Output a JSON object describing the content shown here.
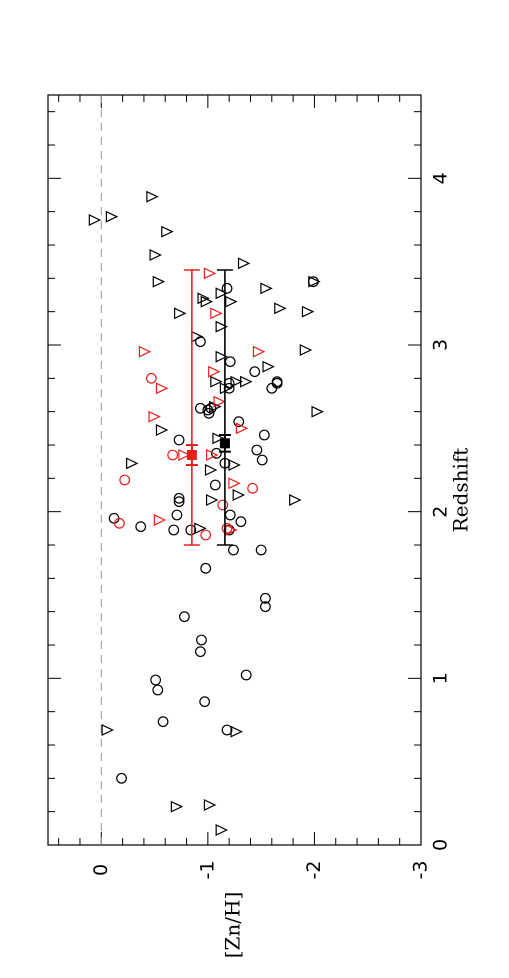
{
  "chart_data": {
    "type": "scatter",
    "x_label": "Redshift",
    "y_label": "[Zn/H]",
    "xlim": [
      0,
      4.5
    ],
    "ylim": [
      0.5,
      -3
    ],
    "xticks": [
      0,
      1,
      2,
      3,
      4
    ],
    "yticks": [
      0,
      -1,
      -2,
      -3
    ],
    "xminorticks": [
      0.2,
      0.4,
      0.6,
      0.8,
      1.2,
      1.4,
      1.6,
      1.8,
      2.2,
      2.4,
      2.6,
      2.8,
      3.2,
      3.4,
      3.6,
      3.8,
      4.2,
      4.4
    ],
    "yminorticks": [
      0.2,
      0.4,
      -0.2,
      -0.4,
      -0.6,
      -0.8,
      -1.2,
      -1.4,
      -1.6,
      -1.8,
      -2.2,
      -2.4,
      -2.6,
      -2.8
    ],
    "hline": 0,
    "hline_color": "#999999",
    "series": [
      {
        "color": "#000000",
        "marker": "circle",
        "x": [
          0.4,
          0.99,
          0.93,
          0.74,
          0.86,
          0.69,
          1.23,
          1.16,
          1.02,
          1.37,
          1.48,
          1.43,
          1.66,
          1.77,
          1.77,
          1.96,
          1.91,
          1.89,
          1.98,
          2.08,
          2.06,
          1.89,
          1.89,
          1.94,
          1.98,
          2.16,
          2.29,
          2.35,
          2.43,
          2.31,
          2.37,
          2.46,
          2.54,
          2.59,
          2.61,
          2.62,
          2.62,
          2.77,
          2.74,
          2.78,
          2.77,
          2.84,
          2.9,
          3.02,
          3.34,
          3.38,
          2.74
        ],
        "values": [
          -0.19,
          -0.51,
          -0.53,
          -0.58,
          -0.97,
          -1.18,
          -0.94,
          -0.93,
          -1.36,
          -0.78,
          -1.54,
          -1.54,
          -0.98,
          -1.24,
          -1.5,
          -0.12,
          -0.37,
          -0.68,
          -0.71,
          -0.73,
          -0.73,
          -0.84,
          -1.2,
          -1.31,
          -1.21,
          -1.07,
          -1.16,
          -1.08,
          -0.73,
          -1.51,
          -1.46,
          -1.53,
          -1.29,
          -1.01,
          -1.0,
          -1.03,
          -0.93,
          -1.2,
          -1.6,
          -1.65,
          -1.65,
          -1.44,
          -1.21,
          -0.93,
          -1.18,
          -1.99,
          -1.2
        ]
      },
      {
        "color": "#000000",
        "marker": "triangle",
        "x": [
          0.09,
          0.24,
          0.23,
          0.69,
          0.68,
          3.75,
          3.77,
          3.89,
          3.68,
          3.54,
          3.38,
          3.49,
          3.34,
          3.2,
          3.38,
          3.28,
          3.26,
          3.31,
          3.26,
          3.19,
          3.11,
          3.05,
          3.22,
          2.97,
          2.93,
          2.87,
          2.78,
          2.78,
          2.78,
          2.6,
          2.63,
          2.44,
          2.28,
          2.29,
          2.25,
          2.07,
          2.1,
          2.07,
          1.9,
          2.49,
          2.74
        ],
        "values": [
          -1.12,
          -1.01,
          -0.7,
          -0.05,
          -1.26,
          0.07,
          -0.09,
          -0.47,
          -0.61,
          -0.5,
          -0.53,
          -1.33,
          -1.54,
          -1.93,
          -1.99,
          -0.95,
          -0.98,
          -1.12,
          -1.21,
          -0.73,
          -1.12,
          -0.89,
          -1.67,
          -1.91,
          -1.12,
          -1.56,
          -1.07,
          -1.35,
          -1.26,
          -2.02,
          -1.06,
          -1.09,
          -1.24,
          -0.28,
          -1.02,
          -1.03,
          -1.28,
          -1.81,
          -0.92,
          -0.56,
          -1.16
        ]
      },
      {
        "color": "#e8201c",
        "marker": "circle",
        "x": [
          2.19,
          1.93,
          1.86,
          2.34,
          2.8,
          2.04,
          2.14,
          1.9
        ],
        "values": [
          -0.22,
          -0.17,
          -0.98,
          -0.67,
          -0.47,
          -1.14,
          -1.42,
          -1.18
        ]
      },
      {
        "color": "#e8201c",
        "marker": "triangle",
        "x": [
          2.96,
          2.74,
          2.57,
          1.95,
          2.34,
          2.84,
          2.66,
          3.19,
          3.43,
          2.96,
          2.5,
          2.17,
          1.89,
          2.34
        ],
        "values": [
          -0.4,
          -0.56,
          -0.49,
          -0.54,
          -0.77,
          -1.05,
          -1.1,
          -1.07,
          -1.01,
          -1.47,
          -1.31,
          -1.24,
          -1.21,
          -1.03
        ]
      }
    ],
    "means": [
      {
        "color": "#e8201c",
        "x": 2.34,
        "xerr": 0.06,
        "xmin": 1.8,
        "xmax": 3.45,
        "y": -0.85
      },
      {
        "color": "#000000",
        "x": 2.41,
        "xerr": 0.05,
        "xmin": 1.8,
        "xmax": 3.45,
        "y": -1.16
      }
    ]
  }
}
